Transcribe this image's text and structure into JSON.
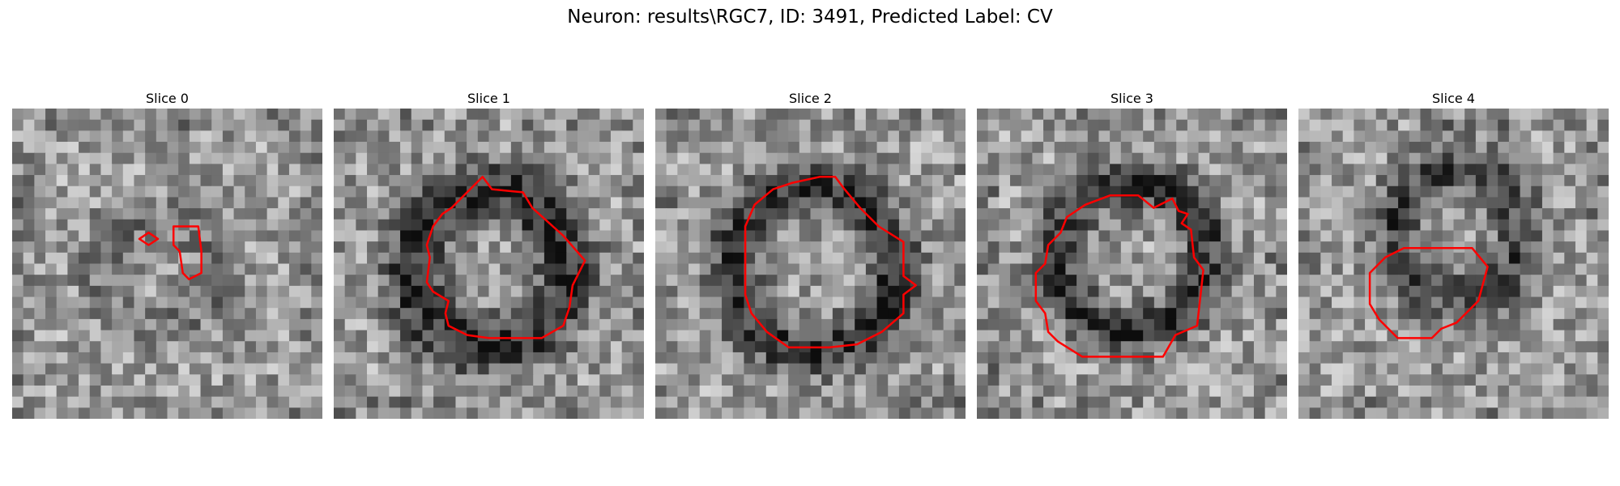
{
  "figure": {
    "title": "Neuron: results\\RGC7, ID: 3491, Predicted Label: CV"
  },
  "panels": [
    {
      "title": "Slice 0",
      "image": "grayscale-microscopy-slice",
      "outline_color": "#ff0000"
    },
    {
      "title": "Slice 1",
      "image": "grayscale-microscopy-slice",
      "outline_color": "#ff0000"
    },
    {
      "title": "Slice 2",
      "image": "grayscale-microscopy-slice",
      "outline_color": "#ff0000"
    },
    {
      "title": "Slice 3",
      "image": "grayscale-microscopy-slice",
      "outline_color": "#ff0000"
    },
    {
      "title": "Slice 4",
      "image": "grayscale-microscopy-slice",
      "outline_color": "#ff0000"
    }
  ]
}
